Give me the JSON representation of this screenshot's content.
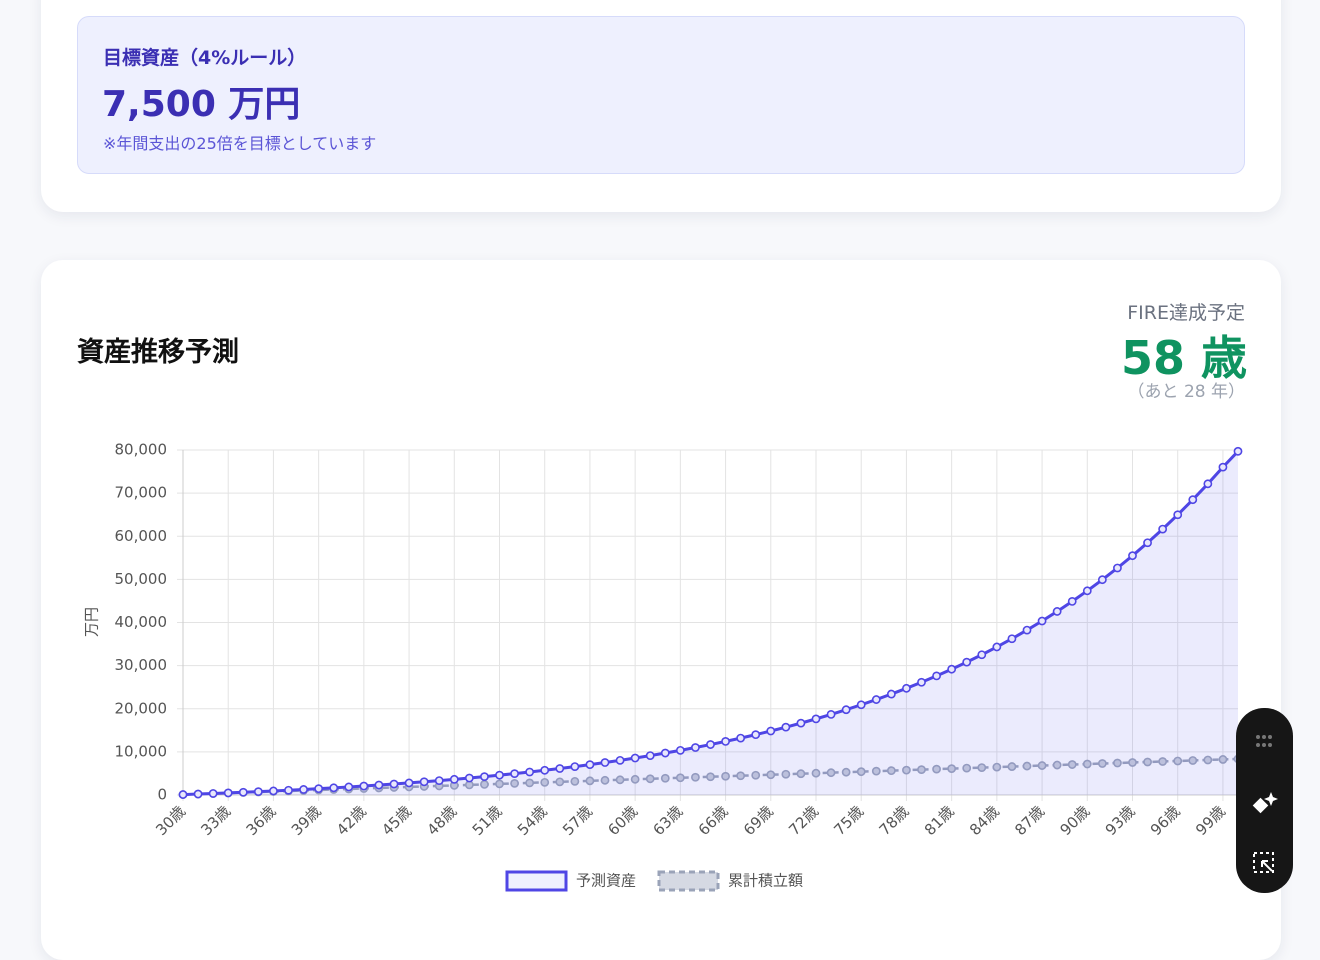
{
  "header": {
    "title": "目標資産（4%ルール）",
    "amount": "7,500 万円",
    "note": "※年間支出の25倍を目標としています"
  },
  "chart_card": {
    "title": "資産推移予測",
    "fire_label": "FIRE達成予定",
    "fire_age": "58 歳",
    "remaining": "（あと 28 年）"
  },
  "chart_data": {
    "type": "line",
    "y_label": "万円",
    "categories": [
      "30歳",
      null,
      null,
      "33歳",
      null,
      null,
      "36歳",
      null,
      null,
      "39歳",
      null,
      null,
      "42歳",
      null,
      null,
      "45歳",
      null,
      null,
      "48歳",
      null,
      null,
      "51歳",
      null,
      null,
      "54歳",
      null,
      null,
      "57歳",
      null,
      null,
      "60歳",
      null,
      null,
      "63歳",
      null,
      null,
      "66歳",
      null,
      null,
      "69歳",
      null,
      null,
      "72歳",
      null,
      null,
      "75歳",
      null,
      null,
      "78歳",
      null,
      null,
      "81歳",
      null,
      null,
      "84歳",
      null,
      null,
      "87歳",
      null,
      null,
      "90歳",
      null,
      null,
      "93歳",
      null,
      null,
      "96歳",
      null,
      null,
      "99歳",
      null
    ],
    "series": [
      {
        "name": "予測資産",
        "color": "#4f46e5",
        "values": [
          100,
          223,
          353,
          489,
          632,
          783,
          942,
          1109,
          1285,
          1470,
          1664,
          1869,
          2084,
          2310,
          2548,
          2799,
          3063,
          3340,
          3632,
          3939,
          4262,
          4602,
          4959,
          5335,
          5730,
          6146,
          6584,
          7044,
          7528,
          8037,
          8573,
          9137,
          9730,
          10354,
          11010,
          11701,
          12428,
          13192,
          13996,
          14842,
          15732,
          16668,
          17653,
          18689,
          19779,
          20926,
          22132,
          23401,
          24736,
          26140,
          27617,
          29171,
          30806,
          32526,
          34335,
          36238,
          38240,
          40347,
          42563,
          44894,
          47347,
          49927,
          52641,
          55496,
          58500,
          61660,
          64984,
          68481,
          72160,
          76030,
          79700
        ]
      },
      {
        "name": "累計積立額",
        "color": "#9aa3b8",
        "values": [
          100,
          218,
          336,
          454,
          572,
          690,
          808,
          926,
          1044,
          1162,
          1280,
          1398,
          1516,
          1634,
          1752,
          1870,
          1988,
          2106,
          2224,
          2342,
          2460,
          2578,
          2696,
          2814,
          2932,
          3050,
          3168,
          3286,
          3404,
          3522,
          3640,
          3758,
          3876,
          3994,
          4112,
          4230,
          4348,
          4466,
          4584,
          4702,
          4820,
          4938,
          5056,
          5174,
          5292,
          5410,
          5528,
          5646,
          5764,
          5882,
          6000,
          6118,
          6236,
          6354,
          6472,
          6590,
          6708,
          6826,
          6944,
          7062,
          7180,
          7298,
          7416,
          7534,
          7652,
          7770,
          7888,
          8006,
          8124,
          8242,
          8360
        ]
      }
    ],
    "ylim": [
      0,
      80000
    ],
    "yticks": [
      0,
      {
        "value": 10000,
        "label": "10,000"
      },
      {
        "value": 20000,
        "label": "20,000"
      },
      {
        "value": 30000,
        "label": "30,000"
      },
      {
        "value": 40000,
        "label": "40,000"
      },
      {
        "value": 50000,
        "label": "50,000"
      },
      {
        "value": 60000,
        "label": "60,000"
      },
      {
        "value": 70000,
        "label": "70,000"
      },
      {
        "value": 80000,
        "label": "80,000"
      }
    ],
    "grid": true
  }
}
